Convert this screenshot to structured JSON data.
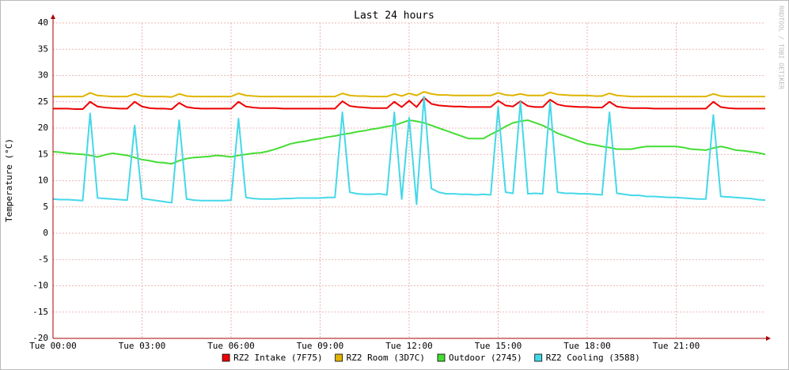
{
  "chart_data": {
    "type": "line",
    "title": "Last 24 hours",
    "y_label": "Temperature (°C)",
    "watermark": "RRDTOOL / TOBI OETIKER",
    "x": [
      0,
      0.25,
      0.5,
      0.75,
      1,
      1.25,
      1.5,
      1.75,
      2,
      2.25,
      2.5,
      2.75,
      3,
      3.25,
      3.5,
      3.75,
      4,
      4.25,
      4.5,
      4.75,
      5,
      5.25,
      5.5,
      5.75,
      6,
      6.25,
      6.5,
      6.75,
      7,
      7.25,
      7.5,
      7.75,
      8,
      8.25,
      8.5,
      8.75,
      9,
      9.25,
      9.5,
      9.75,
      10,
      10.25,
      10.5,
      10.75,
      11,
      11.25,
      11.5,
      11.75,
      12,
      12.25,
      12.5,
      12.75,
      13,
      13.25,
      13.5,
      13.75,
      14,
      14.25,
      14.5,
      14.75,
      15,
      15.25,
      15.5,
      15.75,
      16,
      16.25,
      16.5,
      16.75,
      17,
      17.25,
      17.5,
      17.75,
      18,
      18.25,
      18.5,
      18.75,
      19,
      19.25,
      19.5,
      19.75,
      20,
      20.25,
      20.5,
      20.75,
      21,
      21.25,
      21.5,
      21.75,
      22,
      22.25,
      22.5,
      22.75,
      23,
      23.25,
      23.5,
      23.75,
      24
    ],
    "xlim": [
      0,
      24
    ],
    "xticks": [
      {
        "value": 0,
        "label": "Tue 00:00"
      },
      {
        "value": 3,
        "label": "Tue 03:00"
      },
      {
        "value": 6,
        "label": "Tue 06:00"
      },
      {
        "value": 9,
        "label": "Tue 09:00"
      },
      {
        "value": 12,
        "label": "Tue 12:00"
      },
      {
        "value": 15,
        "label": "Tue 15:00"
      },
      {
        "value": 18,
        "label": "Tue 18:00"
      },
      {
        "value": 21,
        "label": "Tue 21:00"
      }
    ],
    "ylim": [
      -20,
      40
    ],
    "yticks": [
      -20,
      -15,
      -10,
      -5,
      0,
      5,
      10,
      15,
      20,
      25,
      30,
      35,
      40
    ],
    "grid": true,
    "series": [
      {
        "name": "RZ2 Intake (7F75)",
        "color": "#ee0000",
        "values": [
          23.7,
          23.7,
          23.7,
          23.6,
          23.6,
          25.0,
          24.1,
          23.9,
          23.8,
          23.7,
          23.7,
          25.0,
          24.1,
          23.8,
          23.7,
          23.7,
          23.6,
          24.8,
          24.0,
          23.8,
          23.7,
          23.7,
          23.7,
          23.7,
          23.7,
          25.0,
          24.1,
          23.9,
          23.8,
          23.8,
          23.8,
          23.7,
          23.7,
          23.7,
          23.7,
          23.7,
          23.7,
          23.7,
          23.7,
          25.1,
          24.2,
          24.0,
          23.9,
          23.8,
          23.8,
          23.8,
          25.0,
          24.0,
          25.2,
          24.0,
          25.8,
          24.6,
          24.3,
          24.2,
          24.1,
          24.1,
          24.0,
          24.0,
          24.0,
          24.0,
          25.2,
          24.3,
          24.1,
          25.1,
          24.2,
          24.0,
          24.0,
          25.4,
          24.5,
          24.2,
          24.1,
          24.0,
          24.0,
          23.9,
          23.9,
          25.0,
          24.1,
          23.9,
          23.8,
          23.8,
          23.8,
          23.7,
          23.7,
          23.7,
          23.7,
          23.7,
          23.7,
          23.7,
          23.7,
          25.0,
          24.0,
          23.8,
          23.7,
          23.7,
          23.7,
          23.7,
          23.7
        ]
      },
      {
        "name": "RZ2 Room (3D7C)",
        "color": "#e0b400",
        "values": [
          26.0,
          26.0,
          26.0,
          26.0,
          26.0,
          26.7,
          26.2,
          26.1,
          26.0,
          26.0,
          26.0,
          26.5,
          26.1,
          26.0,
          26.0,
          26.0,
          25.9,
          26.5,
          26.1,
          26.0,
          26.0,
          26.0,
          26.0,
          26.0,
          26.0,
          26.6,
          26.2,
          26.1,
          26.0,
          26.0,
          26.0,
          26.0,
          26.0,
          26.0,
          26.0,
          26.0,
          26.0,
          26.0,
          26.0,
          26.6,
          26.2,
          26.1,
          26.1,
          26.0,
          26.0,
          26.0,
          26.5,
          26.1,
          26.6,
          26.2,
          26.9,
          26.5,
          26.3,
          26.3,
          26.2,
          26.2,
          26.2,
          26.2,
          26.2,
          26.2,
          26.7,
          26.3,
          26.2,
          26.5,
          26.2,
          26.2,
          26.2,
          26.8,
          26.4,
          26.3,
          26.2,
          26.2,
          26.2,
          26.1,
          26.1,
          26.6,
          26.2,
          26.1,
          26.0,
          26.0,
          26.0,
          26.0,
          26.0,
          26.0,
          26.0,
          26.0,
          26.0,
          26.0,
          26.0,
          26.5,
          26.1,
          26.0,
          26.0,
          26.0,
          26.0,
          26.0,
          26.0
        ]
      },
      {
        "name": "Outdoor (2745)",
        "color": "#44dd33",
        "values": [
          15.5,
          15.4,
          15.2,
          15.1,
          15.0,
          14.8,
          14.5,
          14.9,
          15.2,
          15.0,
          14.8,
          14.4,
          14.0,
          13.8,
          13.5,
          13.4,
          13.2,
          13.8,
          14.2,
          14.4,
          14.5,
          14.6,
          14.8,
          14.7,
          14.5,
          14.8,
          15.0,
          15.2,
          15.3,
          15.6,
          16.0,
          16.5,
          17.0,
          17.3,
          17.5,
          17.8,
          18.0,
          18.3,
          18.5,
          18.8,
          19.0,
          19.3,
          19.5,
          19.8,
          20.0,
          20.3,
          20.5,
          21.0,
          21.5,
          21.3,
          21.0,
          20.5,
          20.0,
          19.5,
          19.0,
          18.5,
          18.0,
          18.0,
          18.0,
          18.8,
          19.5,
          20.3,
          21.0,
          21.3,
          21.5,
          21.0,
          20.5,
          19.8,
          19.0,
          18.5,
          18.0,
          17.5,
          17.0,
          16.8,
          16.5,
          16.3,
          16.0,
          16.0,
          16.0,
          16.3,
          16.5,
          16.5,
          16.5,
          16.5,
          16.5,
          16.3,
          16.0,
          15.9,
          15.8,
          16.2,
          16.5,
          16.2,
          15.8,
          15.7,
          15.5,
          15.3,
          15.0
        ]
      },
      {
        "name": "RZ2 Cooling (3588)",
        "color": "#44d8e8",
        "values": [
          6.5,
          6.4,
          6.4,
          6.3,
          6.2,
          22.8,
          6.7,
          6.6,
          6.5,
          6.4,
          6.3,
          20.5,
          6.6,
          6.4,
          6.2,
          6.0,
          5.8,
          21.5,
          6.5,
          6.3,
          6.2,
          6.2,
          6.2,
          6.2,
          6.3,
          21.8,
          6.8,
          6.6,
          6.5,
          6.5,
          6.5,
          6.6,
          6.6,
          6.7,
          6.7,
          6.7,
          6.7,
          6.8,
          6.8,
          23,
          7.8,
          7.5,
          7.4,
          7.4,
          7.5,
          7.3,
          23,
          6.5,
          22,
          5.5,
          26,
          8.5,
          7.8,
          7.5,
          7.5,
          7.4,
          7.4,
          7.3,
          7.4,
          7.3,
          24,
          7.8,
          7.6,
          25,
          7.5,
          7.6,
          7.5,
          25,
          7.8,
          7.6,
          7.6,
          7.5,
          7.5,
          7.4,
          7.3,
          23,
          7.6,
          7.4,
          7.2,
          7.2,
          7.0,
          7.0,
          6.9,
          6.8,
          6.8,
          6.7,
          6.6,
          6.5,
          6.5,
          22.5,
          7.0,
          6.9,
          6.8,
          6.7,
          6.6,
          6.4,
          6.3
        ]
      }
    ]
  }
}
